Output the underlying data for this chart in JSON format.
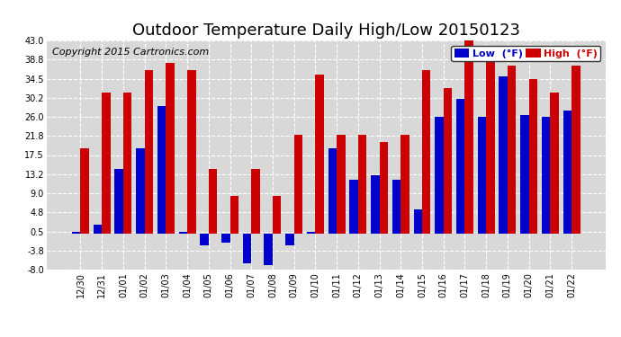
{
  "title": "Outdoor Temperature Daily High/Low 20150123",
  "copyright": "Copyright 2015 Cartronics.com",
  "legend_low": "Low  (°F)",
  "legend_high": "High  (°F)",
  "categories": [
    "12/30",
    "12/31",
    "01/01",
    "01/02",
    "01/03",
    "01/04",
    "01/05",
    "01/06",
    "01/07",
    "01/08",
    "01/09",
    "01/10",
    "01/11",
    "01/12",
    "01/13",
    "01/14",
    "01/15",
    "01/16",
    "01/17",
    "01/18",
    "01/19",
    "01/20",
    "01/21",
    "01/22"
  ],
  "low_values": [
    0.5,
    2.0,
    14.5,
    19.0,
    28.5,
    0.5,
    -2.5,
    -2.0,
    -6.5,
    -7.0,
    -2.5,
    0.5,
    19.0,
    12.0,
    13.0,
    12.0,
    5.5,
    26.0,
    30.0,
    26.0,
    35.0,
    26.5,
    26.0,
    27.5
  ],
  "high_values": [
    19.0,
    31.5,
    31.5,
    36.5,
    38.0,
    36.5,
    14.5,
    8.5,
    14.5,
    8.5,
    22.0,
    35.5,
    22.0,
    22.0,
    20.5,
    22.0,
    36.5,
    32.5,
    44.0,
    40.5,
    37.5,
    34.5,
    31.5,
    37.5
  ],
  "ylim": [
    -8.0,
    43.0
  ],
  "yticks": [
    -8.0,
    -3.8,
    0.5,
    4.8,
    9.0,
    13.2,
    17.5,
    21.8,
    26.0,
    30.2,
    34.5,
    38.8,
    43.0
  ],
  "low_color": "#0000cc",
  "high_color": "#cc0000",
  "bg_color": "#ffffff",
  "plot_bg_color": "#d8d8d8",
  "grid_color": "#ffffff",
  "title_fontsize": 13,
  "copyright_fontsize": 8,
  "bar_width": 0.4
}
